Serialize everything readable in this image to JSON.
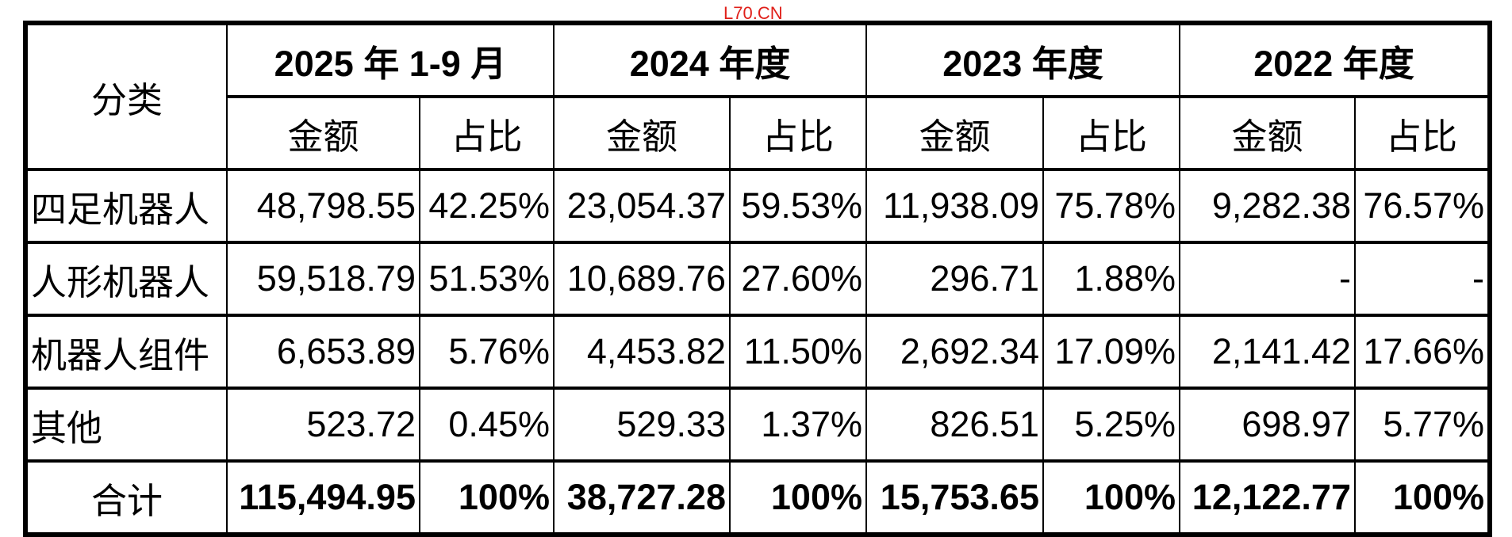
{
  "watermark": "L70.CN",
  "header": {
    "category": "分类",
    "periods": [
      "2025 年 1-9 月",
      "2024 年度",
      "2023 年度",
      "2022 年度"
    ],
    "amount": "金额",
    "ratio": "占比"
  },
  "rows": [
    {
      "name": "四足机器人",
      "cells": [
        "48,798.55",
        "42.25%",
        "23,054.37",
        "59.53%",
        "11,938.09",
        "75.78%",
        "9,282.38",
        "76.57%"
      ]
    },
    {
      "name": "人形机器人",
      "cells": [
        "59,518.79",
        "51.53%",
        "10,689.76",
        "27.60%",
        "296.71",
        "1.88%",
        "-",
        "-"
      ]
    },
    {
      "name": "机器人组件",
      "cells": [
        "6,653.89",
        "5.76%",
        "4,453.82",
        "11.50%",
        "2,692.34",
        "17.09%",
        "2,141.42",
        "17.66%"
      ]
    },
    {
      "name": "其他",
      "cells": [
        "523.72",
        "0.45%",
        "529.33",
        "1.37%",
        "826.51",
        "5.25%",
        "698.97",
        "5.77%"
      ]
    }
  ],
  "total": {
    "name": "合计",
    "cells": [
      "115,494.95",
      "100%",
      "38,727.28",
      "100%",
      "15,753.65",
      "100%",
      "12,122.77",
      "100%"
    ]
  }
}
